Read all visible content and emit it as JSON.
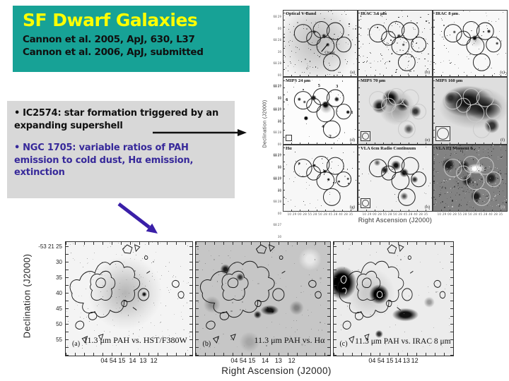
{
  "colors": {
    "title_box_bg": "#17a296",
    "title_text": "#ffff00",
    "citation_text": "#101010",
    "bullet_box_bg": "#d8d8d8",
    "bullet1_text": "#101010",
    "bullet2_text": "#37299a",
    "purple_arrow": "#3a1fa8",
    "black_arrow": "#111111"
  },
  "title_box": {
    "title": "SF Dwarf Galaxies",
    "citations": [
      "Cannon et al. 2005, ApJ, 630, L37",
      "Cannon et al. 2006, ApJ, submitted"
    ]
  },
  "bullet_box": {
    "bullets": [
      {
        "marker": "•",
        "text": "IC2574: star formation triggered by an expanding supershell"
      },
      {
        "marker": "•",
        "text": "NGC 1705: variable ratios of PAH emission to cold dust, Hα emission, extinction"
      }
    ]
  },
  "ic2574_figure": {
    "ylabel": "Declination (J2000)",
    "xlabel": "Right Ascension (J2000)",
    "ytick_labels": [
      "68 29 00",
      "68 28 30",
      "68 28 00",
      "68 27 30",
      "68 27 00"
    ],
    "xtick_run": "10 29 00  28 55  28 50  28 45  28 40  28 35",
    "panels": [
      {
        "label": "Optical V-Band",
        "tag": "(a)",
        "annotation": "Cluster"
      },
      {
        "label": "IRAC 3.6 μm",
        "tag": "(b)"
      },
      {
        "label": "IRAC 8 μm",
        "tag": "(c)"
      },
      {
        "label": "MIPS 24 μm",
        "tag": "(d)",
        "region_numbers": [
          "5",
          "3",
          "6",
          "1",
          "4",
          "2"
        ]
      },
      {
        "label": "MIPS 70 μm",
        "tag": "(e)"
      },
      {
        "label": "MIPS 160 μm",
        "tag": "(f)"
      },
      {
        "label": "Hα",
        "tag": "(g)"
      },
      {
        "label": "VLA 6cm Radio Continuum",
        "tag": "(h)"
      },
      {
        "label": "VLA HI Moment 0",
        "tag": "(i)"
      }
    ]
  },
  "ngc1705_figure": {
    "ylabel": "Declination (J2000)",
    "xlabel": "Right Ascension (J2000)",
    "ytick_labels": [
      "-53 21 25",
      "30",
      "35",
      "40",
      "45",
      "50",
      "55"
    ],
    "xtick_labels": [
      "04 54 15",
      "14",
      "13",
      "12"
    ],
    "panels": [
      {
        "tag": "(a)",
        "caption": "11.3 μm PAH vs. HST/F380W"
      },
      {
        "tag": "(b)",
        "caption": "11.3 μm PAH vs. Hα"
      },
      {
        "tag": "(c)",
        "caption": "11.3 μm PAH vs. IRAC 8 μm"
      }
    ]
  }
}
